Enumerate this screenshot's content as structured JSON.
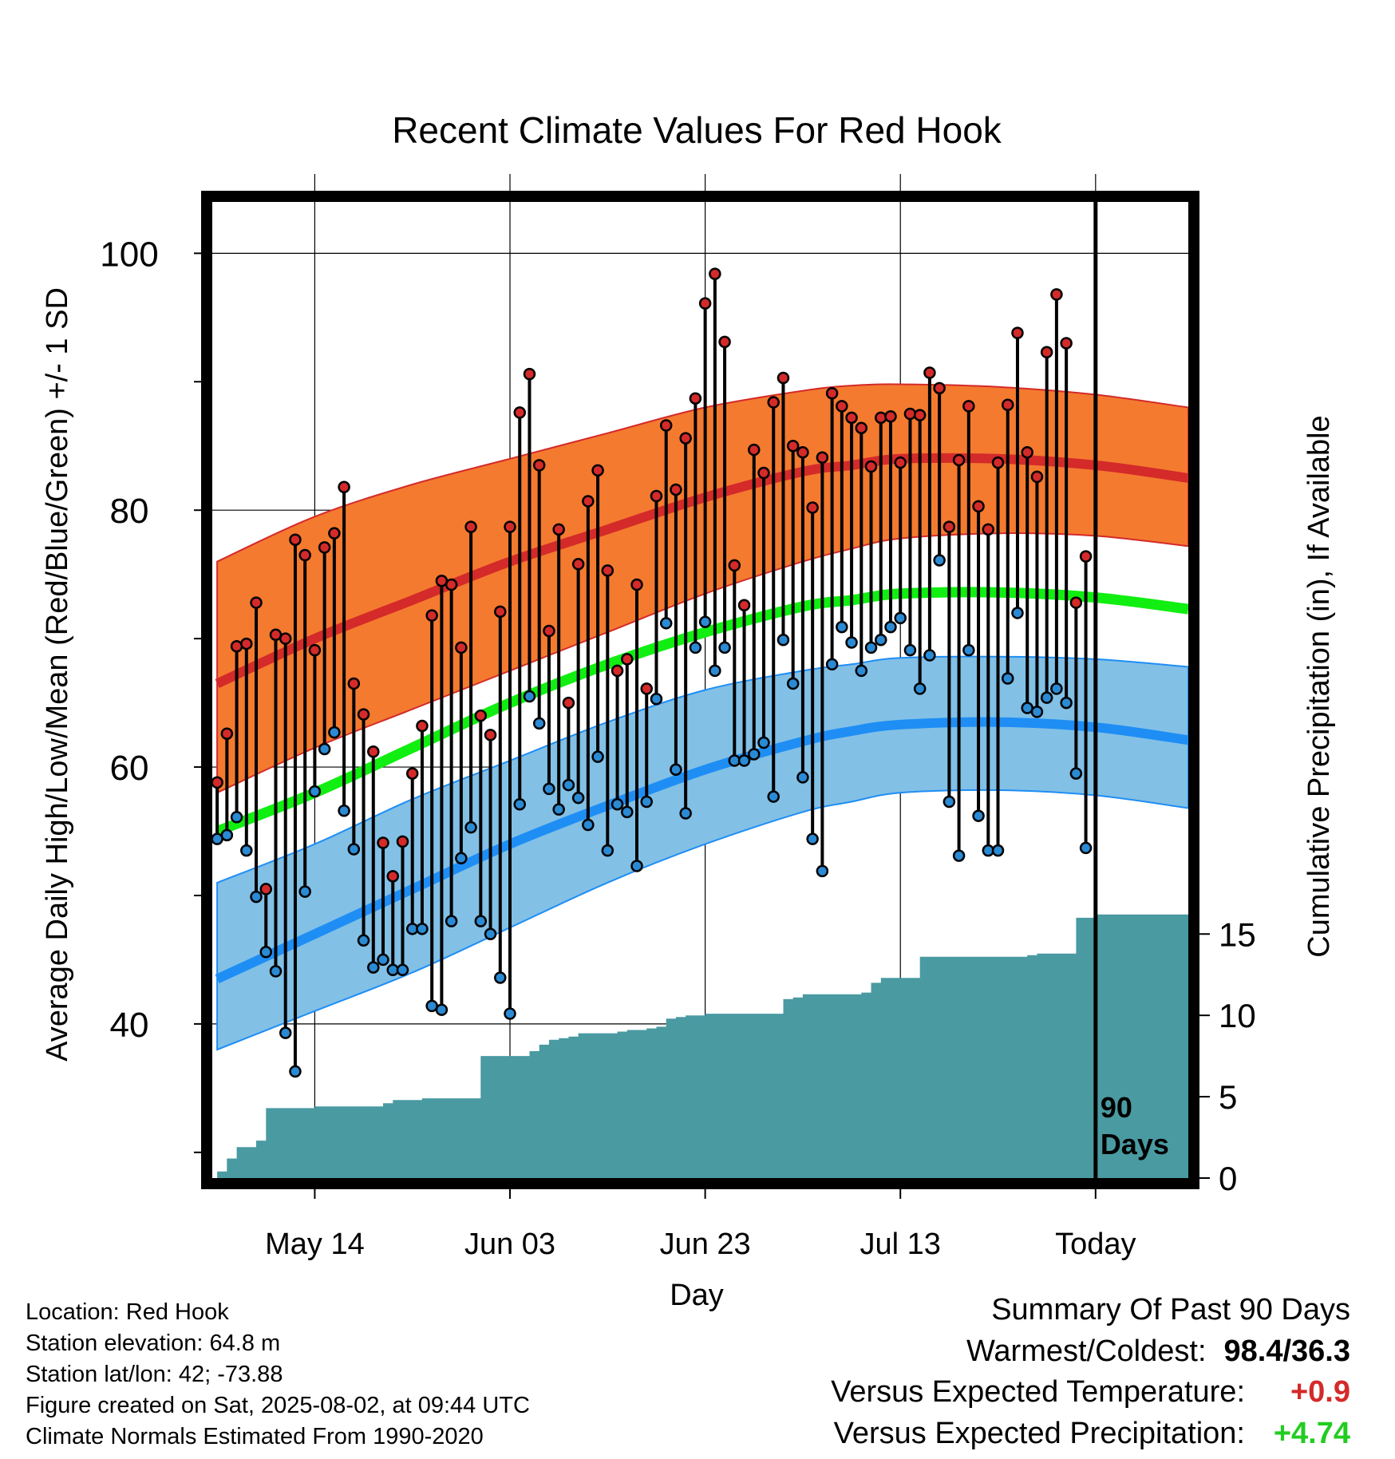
{
  "chart_data": {
    "type": "line",
    "title": "Recent Climate Values For Red Hook",
    "xlabel": "Day",
    "ylabel": "Average Daily High/Low/Mean (Red/Blue/Green) +/- 1 SD",
    "y2label": "Cumulative Precipitation (in), If Available",
    "ylim": [
      28,
      104
    ],
    "y2lim": [
      0,
      60
    ],
    "xlim": [
      -0.5,
      99.5
    ],
    "x_tick_labels": [
      {
        "x": 10,
        "label": "May 14"
      },
      {
        "x": 30,
        "label": "Jun 03"
      },
      {
        "x": 50,
        "label": "Jun 23"
      },
      {
        "x": 70,
        "label": "Jul 13"
      },
      {
        "x": 90,
        "label": "Today"
      }
    ],
    "y_ticks": [
      40,
      60,
      80,
      100
    ],
    "y2_ticks": [
      0,
      5,
      10,
      15
    ],
    "today_marker_x": 90,
    "today_marker_label": "90\nDays",
    "grid": true,
    "normals": {
      "x": [
        0,
        10,
        20,
        30,
        40,
        50,
        60,
        65,
        70,
        80,
        90,
        99.5
      ],
      "high_mean": [
        66.5,
        70.0,
        73.0,
        76.0,
        78.5,
        81.0,
        83.0,
        83.5,
        84.0,
        84.0,
        83.5,
        82.5
      ],
      "high_upper": [
        76.0,
        79.5,
        82.0,
        84.0,
        86.0,
        88.0,
        89.3,
        89.7,
        89.8,
        89.6,
        89.0,
        88.0
      ],
      "high_lower": [
        58.0,
        61.5,
        64.5,
        67.5,
        70.5,
        73.5,
        76.0,
        77.0,
        77.8,
        78.2,
        78.0,
        77.2
      ],
      "mean": [
        55.0,
        58.0,
        61.5,
        65.0,
        68.0,
        70.5,
        72.5,
        73.0,
        73.5,
        73.6,
        73.2,
        72.3
      ],
      "low_mean": [
        43.5,
        47.0,
        50.5,
        54.0,
        57.0,
        59.8,
        62.0,
        62.8,
        63.3,
        63.5,
        63.1,
        62.1
      ],
      "low_upper": [
        51.0,
        54.0,
        57.5,
        60.5,
        63.5,
        66.0,
        67.5,
        68.0,
        68.5,
        68.6,
        68.4,
        67.8
      ],
      "low_lower": [
        38.0,
        41.0,
        44.0,
        47.5,
        51.0,
        54.0,
        56.5,
        57.3,
        58.0,
        58.2,
        57.8,
        56.8
      ]
    },
    "series": [
      {
        "name": "High",
        "color": "#d42a2a",
        "values": [
          58.8,
          62.6,
          69.4,
          69.6,
          72.8,
          50.5,
          70.3,
          70.0,
          77.7,
          76.5,
          69.1,
          77.1,
          78.2,
          81.8,
          66.5,
          64.1,
          61.2,
          54.1,
          51.5,
          54.2,
          59.5,
          63.2,
          71.8,
          74.5,
          74.2,
          69.3,
          78.7,
          64.0,
          62.5,
          72.1,
          78.7,
          87.6,
          90.6,
          83.5,
          70.6,
          78.5,
          65.0,
          75.8,
          80.7,
          83.1,
          75.3,
          67.5,
          68.4,
          74.2,
          66.1,
          81.1,
          86.6,
          81.6,
          85.6,
          88.7,
          96.1,
          98.4,
          93.1,
          75.7,
          72.6,
          84.7,
          82.9,
          88.4,
          90.3,
          85.0,
          84.5,
          80.2,
          84.1,
          89.1,
          88.1,
          87.2,
          86.4,
          83.4,
          87.2,
          87.3,
          83.7,
          87.5,
          87.4,
          90.7,
          89.5,
          78.7,
          83.9,
          88.1,
          80.3,
          78.5,
          83.7,
          88.2,
          93.8,
          84.5,
          82.6,
          92.3,
          96.8,
          93.0,
          72.8,
          76.4
        ]
      },
      {
        "name": "Low",
        "color": "#2a8ad4",
        "values": [
          54.4,
          54.7,
          56.1,
          53.5,
          49.9,
          45.6,
          44.1,
          39.3,
          36.3,
          50.3,
          58.1,
          61.4,
          62.7,
          56.6,
          53.6,
          46.5,
          44.4,
          45.0,
          44.2,
          44.2,
          47.4,
          47.4,
          41.4,
          41.1,
          48.0,
          52.9,
          55.3,
          48.0,
          47.0,
          43.6,
          40.8,
          57.1,
          65.5,
          63.4,
          58.3,
          56.7,
          58.6,
          57.6,
          55.5,
          60.8,
          53.5,
          57.1,
          56.5,
          52.3,
          57.3,
          65.3,
          71.2,
          59.8,
          56.4,
          69.3,
          71.3,
          67.5,
          69.3,
          60.5,
          60.5,
          61.0,
          61.9,
          57.7,
          69.9,
          66.5,
          59.2,
          54.4,
          51.9,
          68.0,
          70.9,
          69.7,
          67.5,
          69.3,
          69.9,
          70.9,
          71.6,
          69.1,
          66.1,
          68.7,
          76.1,
          57.3,
          53.1,
          69.1,
          56.2,
          53.5,
          53.5,
          66.9,
          72.0,
          64.6,
          64.3,
          65.4,
          66.1,
          65.0,
          59.5,
          53.7
        ]
      },
      {
        "name": "Precipitation",
        "color": "#4a9aa2",
        "values": [
          0.4,
          1.2,
          1.9,
          1.9,
          2.3,
          4.3,
          4.3,
          4.3,
          4.3,
          4.3,
          4.4,
          4.4,
          4.4,
          4.4,
          4.4,
          4.4,
          4.4,
          4.6,
          4.8,
          4.8,
          4.8,
          4.9,
          4.9,
          4.9,
          4.9,
          4.9,
          4.9,
          7.5,
          7.5,
          7.5,
          7.5,
          7.5,
          7.8,
          8.2,
          8.5,
          8.6,
          8.7,
          8.9,
          8.9,
          8.9,
          8.9,
          9.0,
          9.1,
          9.1,
          9.2,
          9.3,
          9.8,
          9.9,
          10.0,
          10.0,
          10.1,
          10.1,
          10.1,
          10.1,
          10.1,
          10.1,
          10.1,
          10.1,
          11.0,
          11.1,
          11.3,
          11.3,
          11.3,
          11.3,
          11.3,
          11.3,
          11.4,
          12.0,
          12.3,
          12.3,
          12.3,
          12.3,
          13.6,
          13.6,
          13.6,
          13.6,
          13.6,
          13.6,
          13.6,
          13.6,
          13.6,
          13.6,
          13.6,
          13.7,
          13.8,
          13.8,
          13.8,
          13.8,
          16.0,
          16.0,
          16.2,
          16.2,
          16.2,
          16.2,
          16.2,
          16.2,
          16.2,
          16.2,
          16.2,
          16.2
        ]
      }
    ]
  },
  "info": {
    "location": "Location: Red Hook",
    "elevation": "Station elevation: 64.8 m",
    "latlon": "Station lat/lon: 42; -73.88",
    "created": "Figure created on Sat, 2025-08-02, at 09:44 UTC",
    "normals": "Climate Normals Estimated From 1990-2020"
  },
  "summary": {
    "title": "Summary Of Past 90 Days",
    "warmest_label": "Warmest/Coldest:",
    "warmest_value": "98.4/36.3",
    "temp_label": "Versus Expected Temperature:",
    "temp_value": "+0.9",
    "temp_color": "#d42a2a",
    "precip_label": "Versus Expected Precipitation:",
    "precip_value": "+4.74",
    "precip_color": "#22cc22"
  },
  "colors": {
    "high_band": "#f47a2f",
    "high_line": "#d42a2a",
    "low_band": "#82c0e6",
    "low_line": "#1e8ef5",
    "mean_line": "#11ee11",
    "precip_fill": "#4a9aa2",
    "high_marker": "#d42a2a",
    "low_marker": "#2a8ad4"
  }
}
